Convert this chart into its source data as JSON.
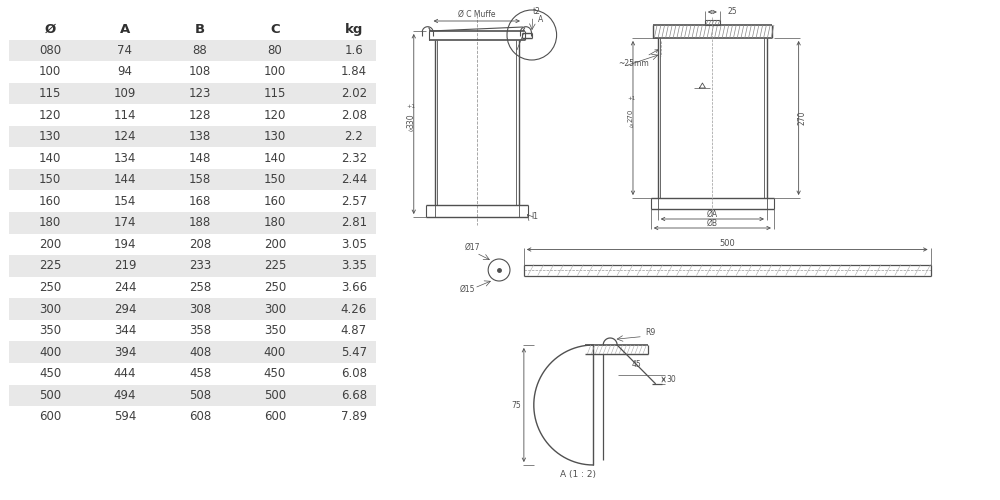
{
  "table_headers": [
    "Ø",
    "A",
    "B",
    "C",
    "kg"
  ],
  "table_rows": [
    [
      "080",
      "74",
      "88",
      "80",
      "1.6"
    ],
    [
      "100",
      "94",
      "108",
      "100",
      "1.84"
    ],
    [
      "115",
      "109",
      "123",
      "115",
      "2.02"
    ],
    [
      "120",
      "114",
      "128",
      "120",
      "2.08"
    ],
    [
      "130",
      "124",
      "138",
      "130",
      "2.2"
    ],
    [
      "140",
      "134",
      "148",
      "140",
      "2.32"
    ],
    [
      "150",
      "144",
      "158",
      "150",
      "2.44"
    ],
    [
      "160",
      "154",
      "168",
      "160",
      "2.57"
    ],
    [
      "180",
      "174",
      "188",
      "180",
      "2.81"
    ],
    [
      "200",
      "194",
      "208",
      "200",
      "3.05"
    ],
    [
      "225",
      "219",
      "233",
      "225",
      "3.35"
    ],
    [
      "250",
      "244",
      "258",
      "250",
      "3.66"
    ],
    [
      "300",
      "294",
      "308",
      "300",
      "4.26"
    ],
    [
      "350",
      "344",
      "358",
      "350",
      "4.87"
    ],
    [
      "400",
      "394",
      "408",
      "400",
      "5.47"
    ],
    [
      "450",
      "444",
      "458",
      "450",
      "6.08"
    ],
    [
      "500",
      "494",
      "508",
      "500",
      "6.68"
    ],
    [
      "600",
      "594",
      "608",
      "600",
      "7.89"
    ]
  ],
  "shaded_rows": [
    0,
    2,
    4,
    6,
    8,
    10,
    12,
    14,
    16
  ],
  "row_bg_shaded": "#e8e8e8",
  "row_bg_white": "#ffffff",
  "text_color": "#404040",
  "header_color": "#303030",
  "line_color": "#505050",
  "dim_color": "#505050",
  "bg_color": "#ffffff"
}
